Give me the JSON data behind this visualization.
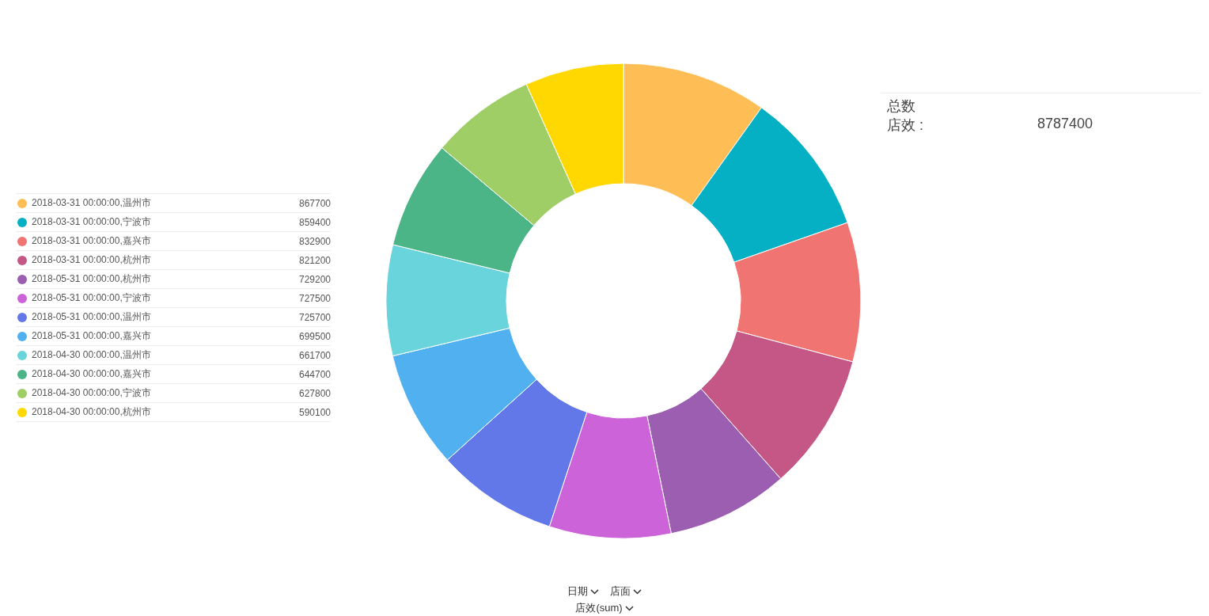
{
  "chart_data": {
    "type": "donut",
    "categories": [
      "2018-03-31 00:00:00,温州市",
      "2018-03-31 00:00:00,宁波市",
      "2018-03-31 00:00:00,嘉兴市",
      "2018-03-31 00:00:00,杭州市",
      "2018-05-31 00:00:00,杭州市",
      "2018-05-31 00:00:00,宁波市",
      "2018-05-31 00:00:00,温州市",
      "2018-05-31 00:00:00,嘉兴市",
      "2018-04-30 00:00:00,温州市",
      "2018-04-30 00:00:00,嘉兴市",
      "2018-04-30 00:00:00,宁波市",
      "2018-04-30 00:00:00,杭州市"
    ],
    "values": [
      867700,
      859400,
      832900,
      821200,
      729200,
      727500,
      725700,
      699500,
      661700,
      644700,
      627800,
      590100
    ],
    "colors": [
      "#ffbe55",
      "#05b0c4",
      "#f07572",
      "#c45785",
      "#9b5eb0",
      "#cd63d9",
      "#6278e8",
      "#51b1f0",
      "#6ad4dc",
      "#4bb587",
      "#9fcd66",
      "#fed800"
    ],
    "legend": "left",
    "data_labels": true,
    "annotations": [
      "总数",
      "店效 :",
      "8787400",
      "日期",
      "店面",
      "店效(sum)"
    ]
  }
}
